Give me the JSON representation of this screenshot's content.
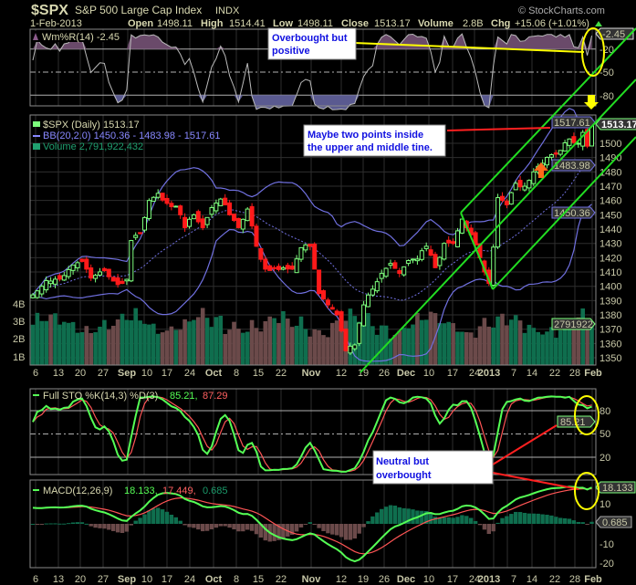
{
  "header": {
    "symbol": "$SPX",
    "name": "S&P 500 Large Cap Index",
    "exchange": "INDX",
    "date": "1-Feb-2013",
    "copyright": "© StockCharts.com",
    "open_label": "Open",
    "open": "1498.11",
    "high_label": "High",
    "high": "1514.41",
    "low_label": "Low",
    "low": "1498.11",
    "close_label": "Close",
    "close": "1513.17",
    "volume_label": "Volume",
    "volume": "2.8B",
    "chg_label": "Chg",
    "chg": "+15.06 (+1.01%)"
  },
  "colors": {
    "up": "#7dff7d",
    "down": "#ff1a1a",
    "bb": "#7070e0",
    "vol_up": "#0f6e4e",
    "vol_down": "#6b4a4a",
    "stoK": "#55ff55",
    "stoD": "#ff5555",
    "annot_yellow": "#ffff00",
    "trend": "#22dd22"
  },
  "annotations": {
    "wr_note_1": "Overbought but",
    "wr_note_2": "positive",
    "price_note_1": "Maybe two points inside",
    "price_note_2": "the upper and middle tine.",
    "sto_note_1": "Neutral but",
    "sto_note_2": "overbought"
  },
  "panels": {
    "wr": {
      "legend": "Wm%R(14) -2.45",
      "value_tag": "-2.45",
      "ticks": [
        "-20",
        "-50",
        "-80"
      ]
    },
    "price": {
      "legend_price": "$SPX (Daily) 1513.17",
      "legend_bb": "BB(20,2.0) 1450.36 - 1483.98 - 1517.61",
      "legend_volume": "Volume 2,791,922,432",
      "tags": {
        "bb_upper": "1517.61",
        "close": "1513.17",
        "bb_mid": "1483.98",
        "bb_lower": "1450.36",
        "volume": "2791922"
      },
      "ticks": [
        "1500",
        "1490",
        "1480",
        "1470",
        "1460",
        "1450",
        "1440",
        "1430",
        "1420",
        "1410",
        "1400",
        "1390",
        "1380",
        "1370",
        "1360",
        "1350"
      ],
      "volume_ticks": [
        "4B",
        "3B",
        "2B",
        "1B"
      ]
    },
    "sto": {
      "legend_name": "Full STO %K(14,3) %D(3)",
      "legend_k": "85.21,",
      "legend_d": "87.29",
      "value_tag": "85.21",
      "ticks": [
        "80",
        "50",
        "20"
      ]
    },
    "macd": {
      "legend_name": "MACD(12,26,9)",
      "legend_macd": "18.133,",
      "legend_signal": "17.449,",
      "legend_hist": "0.685",
      "tag_macd": "18.133",
      "tag_hist": "0.685",
      "ticks": [
        "10",
        "-10",
        "-20"
      ]
    }
  },
  "date_axis": [
    "6",
    "13",
    "20",
    "27",
    "Sep",
    "10",
    "17",
    "24",
    "Oct",
    "8",
    "15",
    "22",
    "Nov",
    "12",
    "19",
    "26",
    "Dec",
    "10",
    "17",
    "24",
    "2013",
    "7",
    "14",
    "22",
    "28",
    "Feb"
  ],
  "chart_data": {
    "type": "candlestick",
    "title": "$SPX S&P 500 Large Cap Index INDX (Daily)",
    "x_range": [
      "2012-08-06",
      "2013-02-01"
    ],
    "ylim": [
      1340,
      1520
    ],
    "close_keypoints": [
      [
        0,
        1394
      ],
      [
        3,
        1403
      ],
      [
        6,
        1405
      ],
      [
        9,
        1415
      ],
      [
        11,
        1418
      ],
      [
        13,
        1406
      ],
      [
        16,
        1411
      ],
      [
        19,
        1400
      ],
      [
        21,
        1404
      ],
      [
        22,
        1432
      ],
      [
        24,
        1437
      ],
      [
        26,
        1460
      ],
      [
        28,
        1465
      ],
      [
        30,
        1458
      ],
      [
        32,
        1456
      ],
      [
        34,
        1441
      ],
      [
        36,
        1450
      ],
      [
        38,
        1441
      ],
      [
        40,
        1455
      ],
      [
        42,
        1461
      ],
      [
        44,
        1450
      ],
      [
        46,
        1441
      ],
      [
        48,
        1454
      ],
      [
        50,
        1428
      ],
      [
        52,
        1412
      ],
      [
        54,
        1413
      ],
      [
        56,
        1413
      ],
      [
        58,
        1412
      ],
      [
        60,
        1427
      ],
      [
        62,
        1428
      ],
      [
        64,
        1395
      ],
      [
        66,
        1387
      ],
      [
        68,
        1380
      ],
      [
        70,
        1355
      ],
      [
        72,
        1359
      ],
      [
        74,
        1387
      ],
      [
        76,
        1398
      ],
      [
        78,
        1409
      ],
      [
        80,
        1416
      ],
      [
        82,
        1409
      ],
      [
        84,
        1418
      ],
      [
        86,
        1419
      ],
      [
        88,
        1428
      ],
      [
        90,
        1413
      ],
      [
        92,
        1430
      ],
      [
        94,
        1430
      ],
      [
        96,
        1447
      ],
      [
        98,
        1436
      ],
      [
        100,
        1420
      ],
      [
        102,
        1402
      ],
      [
        103,
        1426
      ],
      [
        104,
        1462
      ],
      [
        106,
        1457
      ],
      [
        108,
        1472
      ],
      [
        110,
        1470
      ],
      [
        112,
        1480
      ],
      [
        114,
        1486
      ],
      [
        116,
        1492
      ],
      [
        118,
        1495
      ],
      [
        120,
        1503
      ],
      [
        122,
        1500
      ],
      [
        123,
        1507
      ],
      [
        124,
        1498
      ],
      [
        125,
        1513
      ]
    ],
    "last": {
      "open": 1498.11,
      "high": 1514.41,
      "low": 1498.11,
      "close": 1513.17,
      "volume": 2791922432
    },
    "bb_last": {
      "lower": 1450.36,
      "mid": 1483.98,
      "upper": 1517.61
    },
    "williams_r_last": -2.45,
    "sto_last": {
      "k": 85.21,
      "d": 87.29
    },
    "macd_last": {
      "macd": 18.133,
      "signal": 17.449,
      "hist": 0.685
    }
  }
}
